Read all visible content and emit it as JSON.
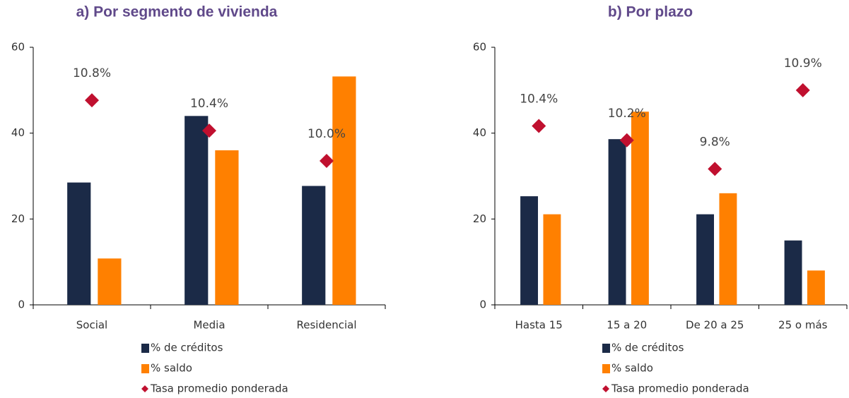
{
  "chart_data": [
    {
      "type": "bar",
      "title": "a) Por segmento de vivienda",
      "categories": [
        "Social",
        "Media",
        "Residencial"
      ],
      "series": [
        {
          "name": "% de créditos",
          "color": "#1b2a47",
          "values": [
            28.5,
            44,
            27.7
          ]
        },
        {
          "name": "% saldo",
          "color": "#ff8000",
          "values": [
            10.8,
            36,
            53.2
          ]
        },
        {
          "name": "Tasa promedio ponderada",
          "color": "#c0102f",
          "type": "scatter",
          "axis": "y2",
          "values": [
            10.8,
            10.4,
            10.0
          ],
          "value_labels": [
            "10.8%",
            "10.4%",
            "10.0%"
          ]
        }
      ],
      "ylim": [
        0,
        60
      ],
      "yticks": [
        0,
        20,
        40,
        60
      ],
      "y2lim": [
        8.1,
        11.5
      ]
    },
    {
      "type": "bar",
      "title": "b) Por plazo",
      "categories": [
        "Hasta 15",
        "15 a 20",
        "De 20 a 25",
        "25 o más"
      ],
      "series": [
        {
          "name": "% de créditos",
          "color": "#1b2a47",
          "values": [
            25.3,
            38.6,
            21.1,
            15
          ]
        },
        {
          "name": "% saldo",
          "color": "#ff8000",
          "values": [
            21.1,
            45,
            26,
            8
          ]
        },
        {
          "name": "Tasa promedio ponderada",
          "color": "#c0102f",
          "type": "scatter",
          "axis": "y2",
          "values": [
            10.4,
            10.2,
            9.8,
            10.9
          ],
          "value_labels": [
            "10.4%",
            "10.2%",
            "9.8%",
            "10.9%"
          ]
        }
      ],
      "ylim": [
        0,
        60
      ],
      "yticks": [
        0,
        20,
        40,
        60
      ],
      "y2lim": [
        7.9,
        11.5
      ]
    }
  ]
}
